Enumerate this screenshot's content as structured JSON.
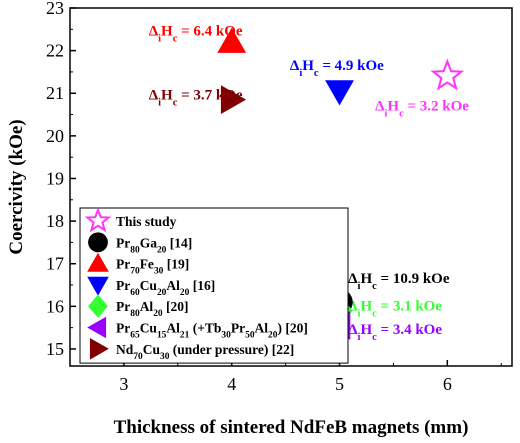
{
  "chart_data": {
    "type": "scatter",
    "title": "",
    "xlabel": "Thickness of sintered NdFeB magnets (mm)",
    "ylabel": "Coercivity (kOe)",
    "xlim": [
      2.5,
      6.6
    ],
    "ylim": [
      14.6,
      23
    ],
    "xticks": [
      3,
      4,
      5,
      6
    ],
    "yticks": [
      15,
      16,
      17,
      18,
      19,
      20,
      21,
      22,
      23
    ],
    "grid": false,
    "legend_position": "bottom-left",
    "series": [
      {
        "name": "This study",
        "marker": "star",
        "color": "#ff33ff",
        "filled": false,
        "points": [
          [
            6.0,
            21.4
          ]
        ]
      },
      {
        "name": "Pr80Ga20 [14]",
        "marker": "circle",
        "color": "#000000",
        "filled": true,
        "points": [
          [
            5.0,
            16.1
          ]
        ]
      },
      {
        "name": "Pr70Fe30 [19]",
        "marker": "triangle-up",
        "color": "#ff0000",
        "filled": true,
        "points": [
          [
            4.0,
            22.2
          ]
        ]
      },
      {
        "name": "Pr60Cu20Al20 [16]",
        "marker": "triangle-down",
        "color": "#0000ff",
        "filled": true,
        "points": [
          [
            5.0,
            21.05
          ]
        ]
      },
      {
        "name": "Pr80Al20 [20]",
        "marker": "diamond",
        "color": "#33ff33",
        "filled": true,
        "points": [
          [
            5.0,
            15.9
          ]
        ]
      },
      {
        "name": "Pr65Cu15Al21 (+Tb30Pr50Al20) [20]",
        "marker": "triangle-left",
        "color": "#9900ff",
        "filled": true,
        "points": [
          [
            5.0,
            15.55
          ]
        ]
      },
      {
        "name": "Nd70Cu30 (under pressure) [22]",
        "marker": "triangle-right",
        "color": "#800000",
        "filled": true,
        "points": [
          [
            4.0,
            20.85
          ]
        ]
      }
    ],
    "annotations": [
      {
        "text": "ΔiHc = 6.4 kOe",
        "x": 3.23,
        "y": 22.35,
        "color": "#ff0000"
      },
      {
        "text": "ΔiHc = 3.7 kOe",
        "x": 3.23,
        "y": 20.85,
        "color": "#800000"
      },
      {
        "text": "ΔiHc = 4.9 kOe",
        "x": 4.54,
        "y": 21.55,
        "color": "#0000ff"
      },
      {
        "text": "ΔiHc = 3.2 kOe",
        "x": 5.33,
        "y": 20.6,
        "color": "#ff33ff"
      },
      {
        "text": "ΔiHc = 10.9 kOe",
        "x": 5.08,
        "y": 16.55,
        "color": "#000000"
      },
      {
        "text": "ΔiHc = 3.1 kOe",
        "x": 5.08,
        "y": 15.9,
        "color": "#33ff33"
      },
      {
        "text": "ΔiHc = 3.4 kOe",
        "x": 5.08,
        "y": 15.35,
        "color": "#9900ff"
      }
    ]
  }
}
